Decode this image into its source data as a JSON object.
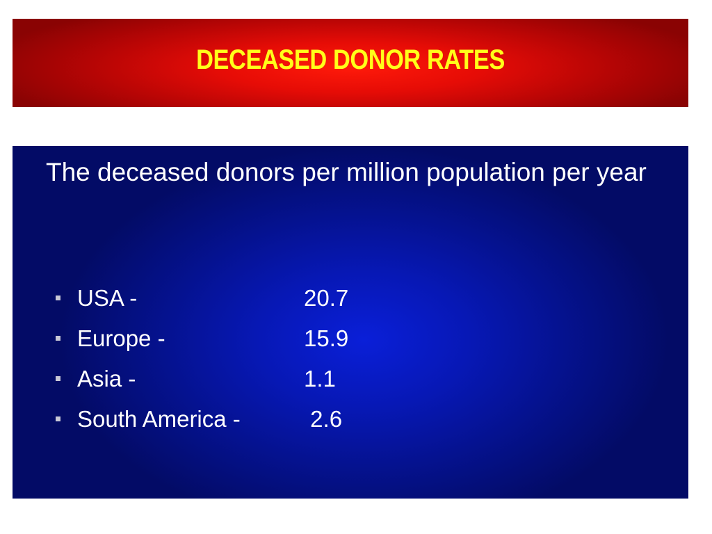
{
  "title": "DECEASED DONOR RATES",
  "intro_text": "The deceased donors per million population per year",
  "rates": [
    {
      "region": "USA -",
      "value": "20.7"
    },
    {
      "region": "Europe -",
      "value": "15.9"
    },
    {
      "region": "Asia -",
      "value": "1.1"
    },
    {
      "region": "South America -",
      "value": " 2.6"
    }
  ],
  "colors": {
    "title_text": "#ffff1a",
    "title_background": "#e60c06",
    "panel_background": "#0718b5",
    "body_text": "#ffffff"
  }
}
